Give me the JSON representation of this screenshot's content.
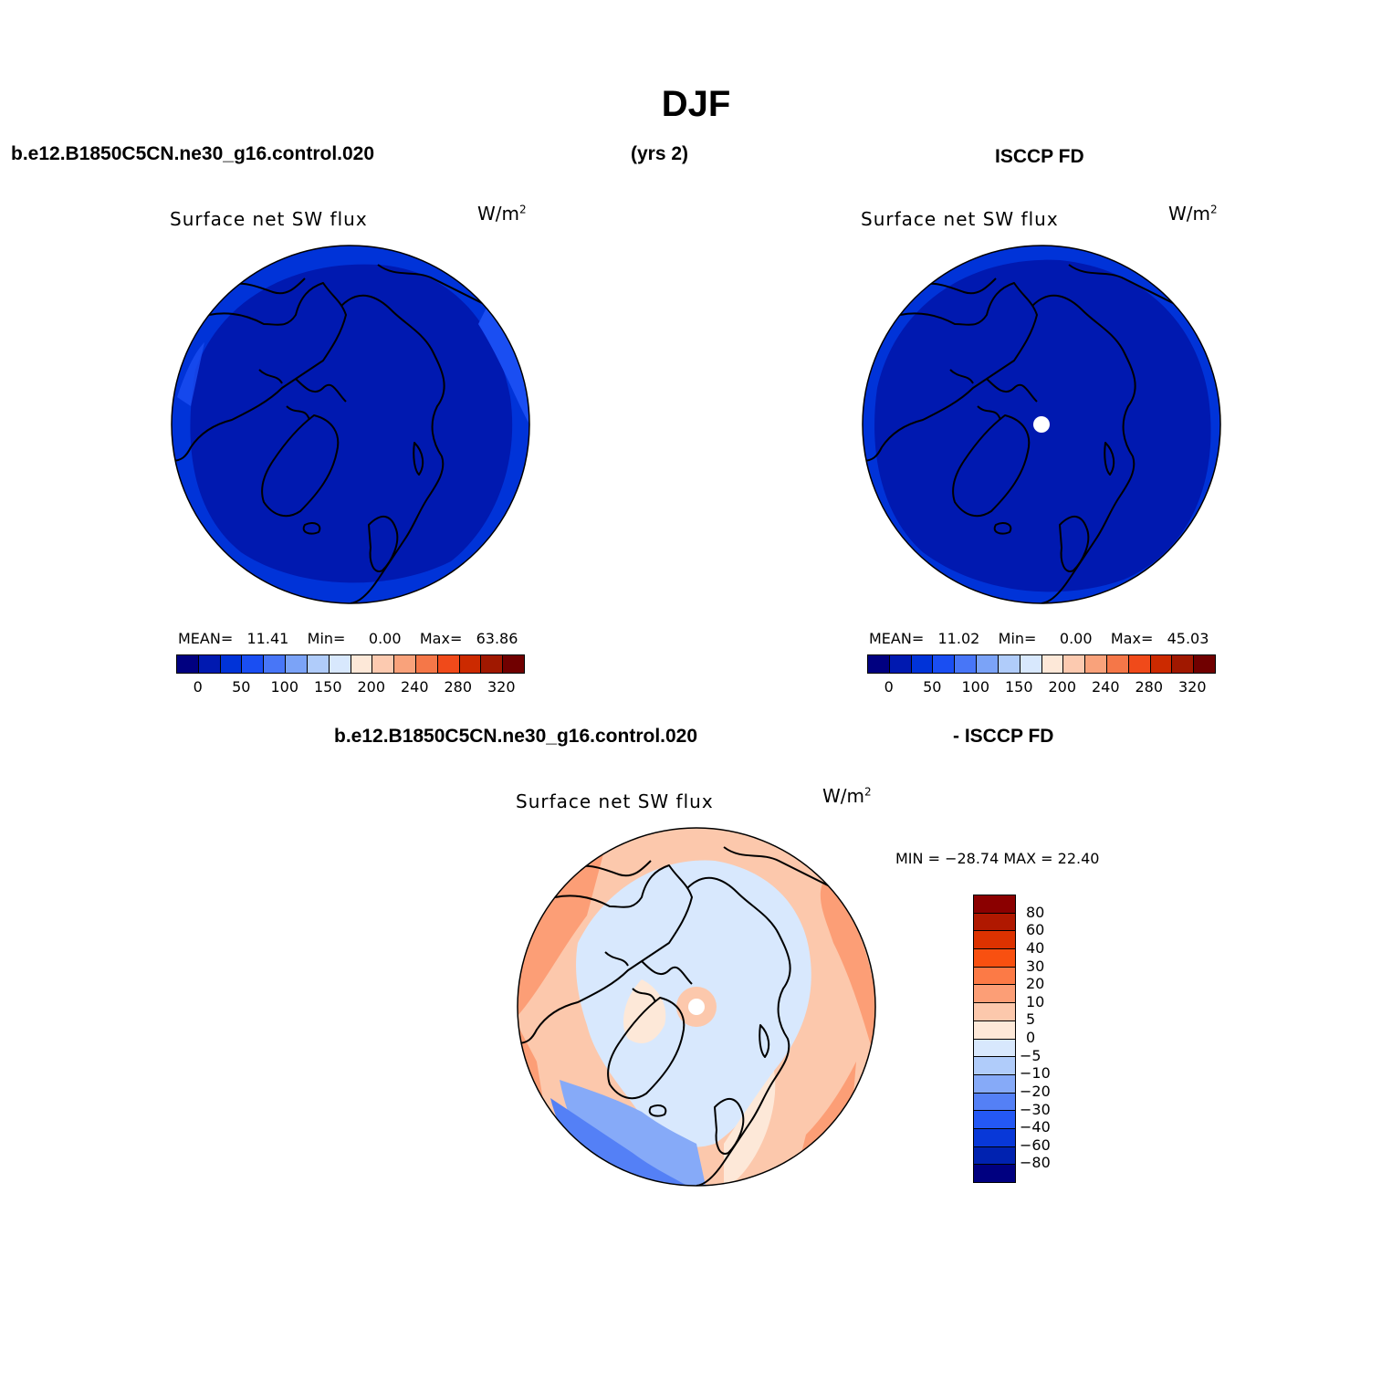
{
  "header": {
    "title": "DJF",
    "left_case": "b.e12.B1850C5CN.ne30_g16.control.020",
    "years": "(yrs 2)",
    "right_case": "ISCCP FD",
    "diff_case": "b.e12.B1850C5CN.ne30_g16.control.020",
    "diff_ref": "- ISCCP FD"
  },
  "palette": {
    "field": [
      "#000080",
      "#0019b0",
      "#0033d8",
      "#1a4ef2",
      "#4876f7",
      "#7ba3f7",
      "#b0ccfa",
      "#d8e8fd",
      "#fde8d8",
      "#fccab0",
      "#f9a27b",
      "#f57748",
      "#f04a1a",
      "#cc2a00",
      "#a01800",
      "#700000"
    ],
    "diff": [
      "#8b0000",
      "#b01800",
      "#dc3200",
      "#f85010",
      "#fc7a46",
      "#fc9e76",
      "#fcc8ac",
      "#fde8d8",
      "#d8e8fd",
      "#b0ccfa",
      "#86aaf8",
      "#5480f6",
      "#2458f4",
      "#0838d8",
      "#0022b0",
      "#000080"
    ]
  },
  "panels": {
    "model": {
      "title": "Surface net SW flux",
      "units": "W/m",
      "units_sup": "2",
      "mean_label": "MEAN=",
      "mean": "11.41",
      "min_label": "Min=",
      "min": "0.00",
      "max_label": "Max=",
      "max": "63.86",
      "ticks": [
        "0",
        "50",
        "100",
        "150",
        "200",
        "240",
        "280",
        "320"
      ]
    },
    "obs": {
      "title": "Surface net SW flux",
      "units": "W/m",
      "units_sup": "2",
      "mean_label": "MEAN=",
      "mean": "11.02",
      "min_label": "Min=",
      "min": "0.00",
      "max_label": "Max=",
      "max": "45.03",
      "ticks": [
        "0",
        "50",
        "100",
        "150",
        "200",
        "240",
        "280",
        "320"
      ]
    },
    "diff": {
      "title": "Surface net SW flux",
      "units": "W/m",
      "units_sup": "2",
      "minmax": "MIN = −28.74 MAX =  22.40",
      "ticks": [
        "80",
        "60",
        "40",
        "30",
        "20",
        "10",
        "5",
        "0",
        "−5",
        "−10",
        "−20",
        "−30",
        "−40",
        "−60",
        "−80"
      ]
    }
  }
}
